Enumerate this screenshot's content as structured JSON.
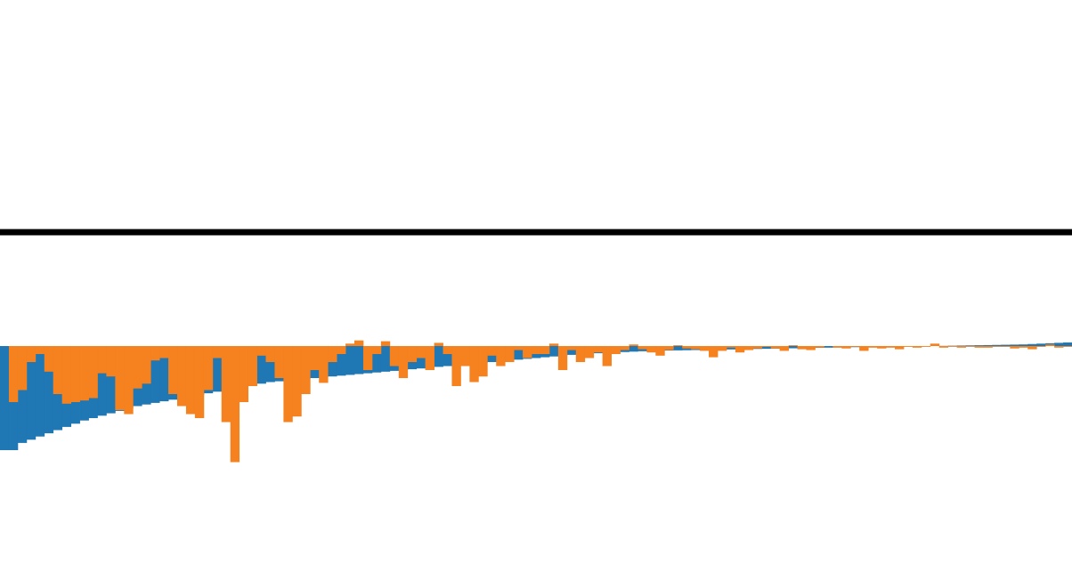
{
  "chart_data": {
    "type": "bar",
    "title": "",
    "xlabel": "",
    "ylabel": "",
    "grid": false,
    "legend": "none",
    "bar_count": 121,
    "ylim": [
      -0.145,
      0.375
    ],
    "separator_line": true,
    "series": [
      {
        "color": "#1f77b4",
        "values": [
          -0.13,
          -0.13,
          -0.121,
          -0.117,
          -0.113,
          -0.109,
          -0.105,
          -0.101,
          -0.097,
          -0.093,
          -0.09,
          -0.087,
          -0.084,
          -0.081,
          -0.078,
          -0.075,
          -0.073,
          -0.071,
          -0.069,
          -0.067,
          -0.065,
          -0.063,
          -0.061,
          -0.059,
          -0.057,
          -0.055,
          -0.053,
          -0.051,
          -0.049,
          -0.047,
          -0.045,
          -0.044,
          -0.043,
          -0.042,
          -0.041,
          -0.04,
          -0.039,
          -0.038,
          -0.037,
          -0.036,
          -0.035,
          -0.034,
          -0.033,
          -0.032,
          -0.031,
          -0.03,
          -0.029,
          -0.028,
          -0.027,
          -0.026,
          -0.025,
          -0.024,
          -0.023,
          -0.022,
          -0.021,
          -0.02,
          -0.019,
          -0.018,
          -0.017,
          -0.016,
          -0.015,
          -0.014,
          -0.013,
          -0.012,
          -0.011,
          -0.01,
          -0.0095,
          -0.009,
          -0.0085,
          -0.008,
          -0.0075,
          -0.007,
          -0.0065,
          -0.006,
          -0.0058,
          -0.0056,
          -0.0054,
          -0.0052,
          -0.005,
          -0.0048,
          -0.0046,
          -0.0044,
          -0.0042,
          -0.004,
          -0.0038,
          -0.0036,
          -0.0034,
          -0.0032,
          -0.003,
          -0.0028,
          -0.0026,
          -0.0024,
          -0.0022,
          -0.002,
          -0.0018,
          -0.0016,
          -0.0014,
          -0.0012,
          -0.001,
          -0.0008,
          -0.0006,
          -0.0004,
          -0.0002,
          -0.0001,
          0.0,
          0.0001,
          0.0002,
          0.0004,
          0.0006,
          0.0008,
          0.001,
          0.0012,
          0.0014,
          0.0016,
          0.0018,
          0.002,
          0.0025,
          0.003,
          0.0035,
          0.004,
          0.0045
        ]
      },
      {
        "color": "#f5811f",
        "values": [
          0.0,
          -0.07,
          -0.055,
          -0.02,
          -0.01,
          -0.032,
          -0.06,
          -0.072,
          -0.07,
          -0.068,
          -0.065,
          -0.034,
          -0.038,
          -0.08,
          -0.085,
          -0.053,
          -0.047,
          -0.018,
          -0.015,
          -0.06,
          -0.075,
          -0.085,
          -0.09,
          -0.055,
          -0.015,
          -0.095,
          -0.145,
          -0.07,
          -0.05,
          -0.012,
          -0.02,
          -0.04,
          -0.095,
          -0.088,
          -0.06,
          -0.03,
          -0.046,
          -0.02,
          -0.01,
          0.003,
          0.007,
          -0.03,
          -0.01,
          0.006,
          -0.025,
          -0.04,
          -0.02,
          -0.015,
          -0.03,
          0.004,
          -0.01,
          -0.05,
          -0.025,
          -0.045,
          -0.038,
          -0.012,
          -0.025,
          -0.02,
          -0.005,
          -0.015,
          -0.01,
          -0.01,
          0.003,
          -0.03,
          -0.005,
          -0.02,
          -0.015,
          -0.008,
          -0.025,
          -0.01,
          -0.005,
          0.002,
          -0.004,
          -0.008,
          -0.012,
          -0.005,
          0.001,
          -0.003,
          -0.004,
          -0.006,
          -0.014,
          -0.006,
          -0.002,
          -0.008,
          -0.005,
          -0.003,
          -0.001,
          -0.003,
          -0.006,
          0.001,
          -0.004,
          -0.005,
          -0.002,
          0.0,
          -0.002,
          -0.003,
          -0.001,
          -0.006,
          -0.002,
          -0.003,
          -0.002,
          -0.004,
          -0.001,
          -0.002,
          -0.001,
          0.003,
          -0.002,
          -0.001,
          -0.002,
          -0.001,
          -0.002,
          -0.002,
          -0.001,
          -0.001,
          -0.003,
          -0.002,
          -0.004,
          -0.001,
          0.002,
          -0.002,
          -0.001
        ]
      }
    ]
  }
}
